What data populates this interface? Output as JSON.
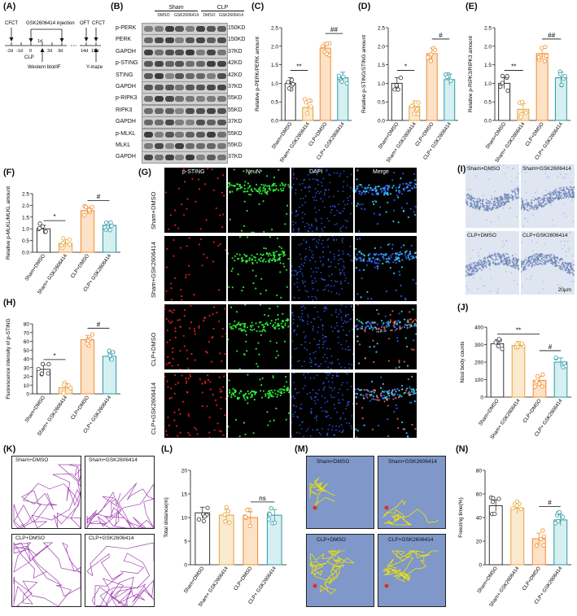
{
  "panels": [
    "(A)",
    "(B)",
    "(C)",
    "(D)",
    "(E)",
    "(F)",
    "(G)",
    "(H)",
    "(I)",
    "(J)",
    "(K)",
    "(L)",
    "(M)",
    "(N)"
  ],
  "timeline": {
    "labels_top": [
      "CFCT",
      "GSK2606414 injection",
      "OFT",
      "CFCT"
    ],
    "days": [
      "-2d",
      "-1d",
      "0",
      "1d",
      "2d",
      "3d",
      "14d",
      "15d"
    ],
    "clp": "CLP",
    "wb": "Western blot/IF",
    "ymaze": "Y-maze"
  },
  "western": {
    "groups": [
      "Sham",
      "CLP"
    ],
    "lanes": [
      "DMSO",
      "GSK2606414",
      "DMSO",
      "GSK2606414"
    ],
    "rows": [
      {
        "name": "p-PERK",
        "kd": "150KD"
      },
      {
        "name": "PERK",
        "kd": "150KD"
      },
      {
        "name": "GAPDH",
        "kd": "37KD"
      },
      {
        "name": "p-STING",
        "kd": "42KD"
      },
      {
        "name": "STING",
        "kd": "42KD"
      },
      {
        "name": "GAPDH",
        "kd": "37KD"
      },
      {
        "name": "p-RIPK3",
        "kd": "55KD"
      },
      {
        "name": "RIPK3",
        "kd": "55KD"
      },
      {
        "name": "GAPDH",
        "kd": "37KD"
      },
      {
        "name": "p-MLKL",
        "kd": "55KD"
      },
      {
        "name": "MLKL",
        "kd": "55KD"
      },
      {
        "name": "GAPDH",
        "kd": "37KD"
      }
    ]
  },
  "group_labels": [
    "Sham+DMSO",
    "Sham+ GSK2606414",
    "CLP+DMSO",
    "CLP+ GSK2606414"
  ],
  "colors": {
    "sham_dmso": "#333333",
    "sham_gsk": "#e8a33a",
    "clp_dmso": "#f08a2c",
    "clp_gsk": "#2a9aa4",
    "track_m": "#f2e600",
    "track_k": "#a040b0",
    "bg_m": "#7f97c9"
  },
  "chart_data": [
    {
      "panel": "C",
      "type": "bar",
      "ylabel": "Relative p-PERK/PERK amount",
      "ylim": [
        0,
        2.5
      ],
      "yticks": [
        0,
        0.5,
        1.0,
        1.5,
        2.0,
        2.5
      ],
      "categories": [
        "Sham+DMSO",
        "Sham+ GSK2606414",
        "CLP+DMSO",
        "CLP+ GSK2606414"
      ],
      "values": [
        1.0,
        0.35,
        1.95,
        1.15
      ],
      "sig": [
        {
          "pair": [
            0,
            1
          ],
          "text": "**"
        },
        {
          "pair": [
            2,
            3
          ],
          "text": "##"
        }
      ]
    },
    {
      "panel": "D",
      "type": "bar",
      "ylabel": "Relative p-STING/STING amount",
      "ylim": [
        0,
        2.5
      ],
      "yticks": [
        0,
        0.5,
        1.0,
        1.5,
        2.0,
        2.5
      ],
      "categories": [
        "Sham+DMSO",
        "Sham+ GSK2606414",
        "CLP+DMSO",
        "CLP+ GSK2606414"
      ],
      "values": [
        1.0,
        0.38,
        1.8,
        1.1
      ],
      "sig": [
        {
          "pair": [
            0,
            1
          ],
          "text": "*"
        },
        {
          "pair": [
            2,
            3
          ],
          "text": "#"
        }
      ]
    },
    {
      "panel": "E",
      "type": "bar",
      "ylabel": "Relative p-RIPK3/RIPK3 amount",
      "ylim": [
        0,
        2.5
      ],
      "yticks": [
        0,
        0.5,
        1.0,
        1.5,
        2.0,
        2.5
      ],
      "categories": [
        "Sham+DMSO",
        "Sham+ GSK2606414",
        "CLP+DMSO",
        "CLP+ GSK2606414"
      ],
      "values": [
        1.0,
        0.3,
        1.8,
        1.15
      ],
      "sig": [
        {
          "pair": [
            0,
            1
          ],
          "text": "**"
        },
        {
          "pair": [
            2,
            3
          ],
          "text": "##"
        }
      ]
    },
    {
      "panel": "F",
      "type": "bar",
      "ylabel": "Relative p-MLKL/MLKL amount",
      "ylim": [
        0,
        2.5
      ],
      "yticks": [
        0,
        0.5,
        1.0,
        1.5,
        2.0,
        2.5
      ],
      "categories": [
        "Sham+DMSO",
        "Sham+ GSK2606414",
        "CLP+DMSO",
        "CLP+ GSK2606414"
      ],
      "values": [
        1.0,
        0.38,
        1.78,
        1.15
      ],
      "sig": [
        {
          "pair": [
            0,
            1
          ],
          "text": "*"
        },
        {
          "pair": [
            2,
            3
          ],
          "text": "#"
        }
      ]
    },
    {
      "panel": "H",
      "type": "bar",
      "ylabel": "Fluorescence intensity of p-STING",
      "ylim": [
        0,
        80
      ],
      "yticks": [
        0,
        10,
        20,
        30,
        40,
        50,
        60,
        70,
        80
      ],
      "categories": [
        "Sham+DMSO",
        "Sham+ GSK2606414",
        "CLP+DMSO",
        "CLP+ GSK2606414"
      ],
      "values": [
        28,
        7,
        62,
        43
      ],
      "sig": [
        {
          "pair": [
            0,
            1
          ],
          "text": "*"
        },
        {
          "pair": [
            2,
            3
          ],
          "text": "#"
        }
      ]
    },
    {
      "panel": "J",
      "type": "bar",
      "ylabel": "Nissl body counts",
      "ylim": [
        0,
        400
      ],
      "yticks": [
        0,
        100,
        200,
        300,
        400
      ],
      "categories": [
        "Sham+DMSO",
        "Sham+ GSK2606414",
        "CLP+DMSO",
        "CLP+ GSK2606414"
      ],
      "values": [
        305,
        295,
        95,
        200
      ],
      "sig": [
        {
          "pair": [
            0,
            2
          ],
          "text": "**"
        },
        {
          "pair": [
            2,
            3
          ],
          "text": "#"
        }
      ]
    },
    {
      "panel": "L",
      "type": "bar",
      "ylabel": "Total distance(m)",
      "ylim": [
        0,
        20
      ],
      "yticks": [
        0,
        5,
        10,
        15,
        20
      ],
      "categories": [
        "Sham+DMSO",
        "Sham+ GSK2606414",
        "CLP+DMSO",
        "CLP+ GSK2606414"
      ],
      "values": [
        11,
        10.5,
        10,
        10.5
      ],
      "sig": [
        {
          "pair": [
            2,
            3
          ],
          "text": "ns"
        }
      ]
    },
    {
      "panel": "N",
      "type": "bar",
      "ylabel": "Freezing time(%)",
      "ylim": [
        0,
        80
      ],
      "yticks": [
        0,
        20,
        40,
        60,
        80
      ],
      "categories": [
        "Sham+DMSO",
        "Sham+ GSK2606414",
        "CLP+DMSO",
        "CLP+ GSK2606414"
      ],
      "values": [
        50,
        48,
        22,
        38
      ],
      "sig": [
        {
          "pair": [
            2,
            3
          ],
          "text": "#"
        }
      ]
    }
  ],
  "microscopy": {
    "columns": [
      "p-STING",
      "NeuN",
      "DAPI",
      "Merge"
    ],
    "rows": [
      "Sham+DMSO",
      "Sham+GSK2606414",
      "CLP+DMSO",
      "CLP+GSK2606414"
    ]
  },
  "nissl": {
    "labels": [
      "Sham+DMSO",
      "Sham+GSK2606414",
      "CLP+DMSO",
      "CLP+GSK2606414"
    ],
    "scale": "20μm"
  },
  "oft": {
    "labels": [
      "Sham+DMSO",
      "Sham+GSK2606414",
      "CLP+DMSO",
      "CLP+GSK2606414"
    ]
  },
  "ymaze": {
    "labels": [
      "Sham+DMSO",
      "Sham+GSK2606414",
      "CLP+DMSO",
      "CLP+GSK2606414"
    ]
  }
}
